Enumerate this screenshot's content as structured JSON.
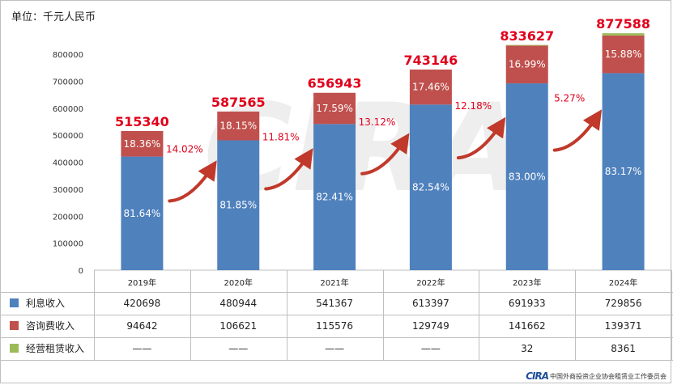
{
  "unit_label": "单位：千元人民币",
  "watermark": "CIRA",
  "footer": {
    "logo": "CIRA",
    "org": "中国外商投资企业协会租赁业工作委员会"
  },
  "colors": {
    "interest": "#4f81bd",
    "consulting": "#c0504d",
    "lease": "#9bbb59",
    "accent": "#e0001b"
  },
  "chart_data": {
    "type": "bar",
    "stacked": true,
    "categories": [
      "2019年",
      "2020年",
      "2021年",
      "2022年",
      "2023年",
      "2024年"
    ],
    "ylim": [
      0,
      850000
    ],
    "yticks": [
      "0",
      "100000",
      "200000",
      "300000",
      "400000",
      "500000",
      "600000",
      "700000",
      "800000"
    ],
    "series": [
      {
        "name": "利息收入",
        "values": [
          420698,
          480944,
          541367,
          613397,
          691933,
          729856
        ],
        "table": [
          "420698",
          "480944",
          "541367",
          "613397",
          "691933",
          "729856"
        ],
        "share_labels": [
          "81.64%",
          "81.85%",
          "82.41%",
          "82.54%",
          "83.00%",
          "83.17%"
        ]
      },
      {
        "name": "咨询费收入",
        "values": [
          94642,
          106621,
          115576,
          129749,
          141662,
          139371
        ],
        "table": [
          "94642",
          "106621",
          "115576",
          "129749",
          "141662",
          "139371"
        ],
        "share_labels": [
          "18.36%",
          "18.15%",
          "17.59%",
          "17.46%",
          "16.99%",
          "15.88%"
        ]
      },
      {
        "name": "经营租赁收入",
        "values": [
          0,
          0,
          0,
          0,
          32,
          8361
        ],
        "table": [
          "——",
          "——",
          "——",
          "——",
          "32",
          "8361"
        ],
        "share_labels": [
          "",
          "",
          "",
          "",
          "",
          ""
        ]
      }
    ],
    "totals": [
      "515340",
      "587565",
      "656943",
      "743146",
      "833627",
      "877588"
    ],
    "growth_labels": [
      "14.02%",
      "11.81%",
      "13.12%",
      "12.18%",
      "5.27%"
    ]
  }
}
